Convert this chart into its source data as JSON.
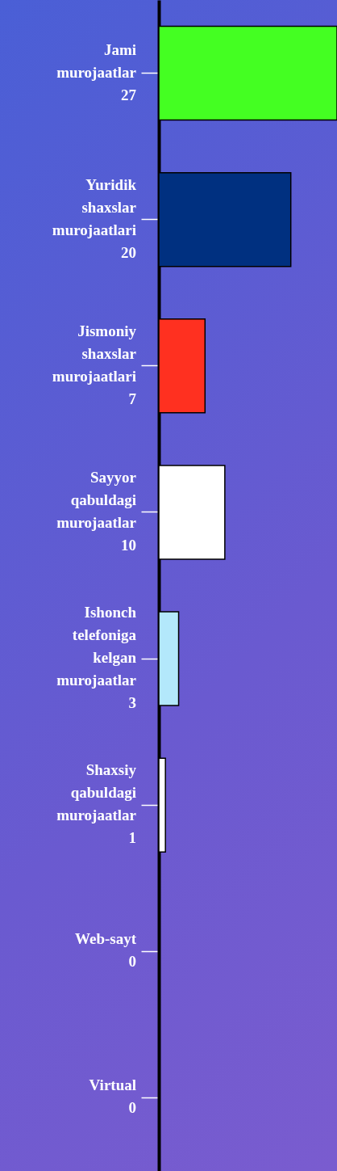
{
  "chart_data": {
    "type": "bar",
    "orientation": "horizontal",
    "categories": [
      "Jami\nmurojaatlar",
      "Yuridik\nshaxslar\nmurojaatlari",
      "Jismoniy\nshaxslar\nmurojaatlari",
      "Sayyor\nqabuldagi\nmurojaatlar",
      "Ishonch\ntelefoniga\nkelgan\nmurojaatlar",
      "Shaxsiy\nqabuldagi\nmurojaatlar",
      "Web-sayt",
      "Virtual"
    ],
    "values": [
      27,
      20,
      7,
      10,
      3,
      1,
      0,
      0
    ],
    "colors": [
      "#44ff22",
      "#003080",
      "#ff3020",
      "#ffffff",
      "#b3e8fb",
      "#ffffff",
      "#ffffff",
      "#ffffff"
    ],
    "data_labels": true,
    "grid": false
  }
}
